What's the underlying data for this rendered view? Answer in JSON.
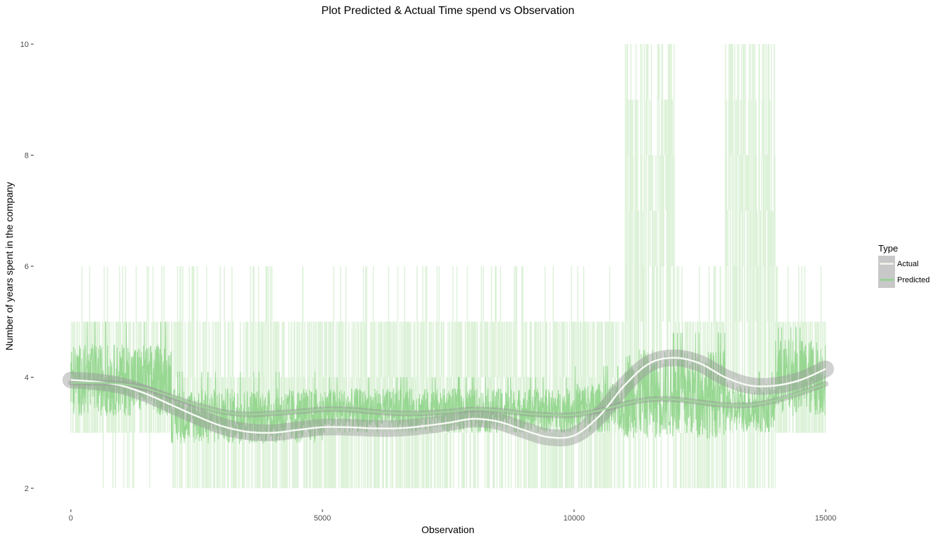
{
  "chart_data": {
    "type": "line",
    "title": "Plot Predicted & Actual Time spend vs Observation",
    "xlabel": "Observation",
    "ylabel": "Number of years spent in the company",
    "xlim": [
      0,
      15000
    ],
    "ylim": [
      2,
      10
    ],
    "x_ticks": [
      0,
      5000,
      10000,
      15000
    ],
    "x_tick_labels": [
      "0",
      "5000",
      "10000",
      "15000"
    ],
    "y_ticks": [
      2,
      4,
      6,
      8,
      10
    ],
    "y_tick_labels": [
      "2",
      "4",
      "6",
      "8",
      "10"
    ],
    "grid": false,
    "legend": {
      "title": "Type",
      "position": "right",
      "entries": [
        {
          "label": "Actual",
          "color": "#f2f7ee"
        },
        {
          "label": "Predicted",
          "color": "#8fd48a"
        }
      ]
    },
    "colors": {
      "actual_raw": "#ddf2d9",
      "predicted_raw": "#8fd48a",
      "actual_smooth": "#f7faf5",
      "predicted_smooth": "#9fd39a",
      "confidence_band": "#9a9a9a"
    },
    "series": [
      {
        "name": "Actual",
        "kind": "raw",
        "segments": [
          {
            "x": [
              0,
              2000
            ],
            "low": 3,
            "high": 5,
            "spike_high": 6,
            "spike_low": 2
          },
          {
            "x": [
              2000,
              11000
            ],
            "low": 2,
            "high": 5,
            "spike_high": 6,
            "spike_low": 2
          },
          {
            "x": [
              11000,
              12000
            ],
            "low": 2,
            "high": 10,
            "spike_high": 10,
            "spike_low": 2
          },
          {
            "x": [
              12000,
              13000
            ],
            "low": 2,
            "high": 5,
            "spike_high": 6,
            "spike_low": 2
          },
          {
            "x": [
              13000,
              14000
            ],
            "low": 2,
            "high": 10,
            "spike_high": 10,
            "spike_low": 2
          },
          {
            "x": [
              14000,
              15000
            ],
            "low": 3,
            "high": 5,
            "spike_high": 6,
            "spike_low": 3
          }
        ]
      },
      {
        "name": "Predicted",
        "kind": "raw",
        "segments": [
          {
            "x": [
              0,
              2000
            ],
            "low": 3.3,
            "high": 4.6,
            "spike_high": 5.0
          },
          {
            "x": [
              2000,
              5000
            ],
            "low": 2.8,
            "high": 3.8,
            "spike_high": 4.1
          },
          {
            "x": [
              5000,
              10000
            ],
            "low": 3.0,
            "high": 3.8,
            "spike_high": 4.0
          },
          {
            "x": [
              10000,
              11000
            ],
            "low": 3.0,
            "high": 3.9,
            "spike_high": 4.2
          },
          {
            "x": [
              11000,
              13000
            ],
            "low": 2.9,
            "high": 4.5,
            "spike_high": 4.8
          },
          {
            "x": [
              13000,
              14000
            ],
            "low": 3.0,
            "high": 3.9,
            "spike_high": 4.1
          },
          {
            "x": [
              14000,
              15000
            ],
            "low": 3.3,
            "high": 4.7,
            "spike_high": 4.9
          }
        ]
      },
      {
        "name": "Actual",
        "kind": "smooth",
        "x": [
          0,
          500,
          1000,
          1500,
          2000,
          2500,
          3000,
          3500,
          4000,
          4500,
          5000,
          5500,
          6000,
          6500,
          7000,
          7500,
          8000,
          8500,
          9000,
          9500,
          10000,
          10500,
          11000,
          11500,
          12000,
          12500,
          13000,
          13500,
          14000,
          14500,
          15000
        ],
        "y": [
          3.95,
          3.92,
          3.85,
          3.7,
          3.5,
          3.3,
          3.12,
          3.02,
          3.0,
          3.05,
          3.1,
          3.1,
          3.08,
          3.08,
          3.12,
          3.18,
          3.25,
          3.2,
          3.05,
          2.92,
          2.95,
          3.3,
          3.85,
          4.25,
          4.35,
          4.25,
          4.0,
          3.85,
          3.85,
          3.95,
          4.15
        ],
        "band": 0.15
      },
      {
        "name": "Predicted",
        "kind": "smooth",
        "x": [
          0,
          500,
          1000,
          1500,
          2000,
          2500,
          3000,
          3500,
          4000,
          4500,
          5000,
          5500,
          6000,
          6500,
          7000,
          7500,
          8000,
          8500,
          9000,
          9500,
          10000,
          10500,
          11000,
          11500,
          12000,
          12500,
          13000,
          13500,
          14000,
          14500,
          15000
        ],
        "y": [
          3.9,
          3.9,
          3.88,
          3.8,
          3.65,
          3.5,
          3.38,
          3.33,
          3.35,
          3.38,
          3.42,
          3.42,
          3.38,
          3.35,
          3.35,
          3.38,
          3.42,
          3.4,
          3.35,
          3.32,
          3.32,
          3.4,
          3.52,
          3.6,
          3.6,
          3.55,
          3.5,
          3.5,
          3.58,
          3.72,
          3.88
        ],
        "band": 0.05
      }
    ]
  }
}
